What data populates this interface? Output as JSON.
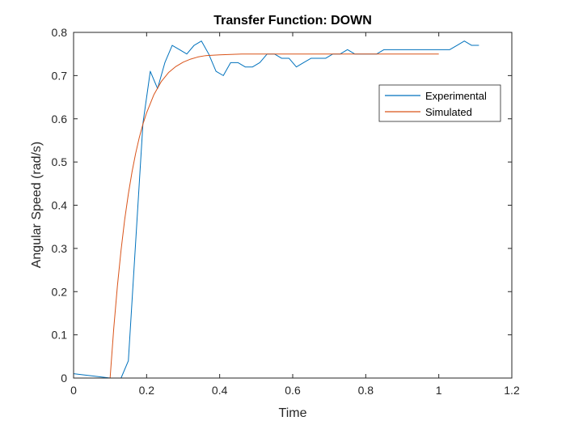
{
  "chart_data": {
    "type": "line",
    "title": "Transfer Function: DOWN",
    "xlabel": "Time",
    "ylabel": "Angular Speed (rad/s)",
    "xlim": [
      0,
      1.2
    ],
    "ylim": [
      0,
      0.8
    ],
    "xticks": [
      0,
      0.2,
      0.4,
      0.6,
      0.8,
      1,
      1.2
    ],
    "xtick_labels": [
      "0",
      "0.2",
      "0.4",
      "0.6",
      "0.8",
      "1",
      "1.2"
    ],
    "yticks": [
      0,
      0.1,
      0.2,
      0.3,
      0.4,
      0.5,
      0.6,
      0.7,
      0.8
    ],
    "ytick_labels": [
      "0",
      "0.1",
      "0.2",
      "0.3",
      "0.4",
      "0.5",
      "0.6",
      "0.7",
      "0.8"
    ],
    "grid": false,
    "legend_position": "upper-right",
    "series": [
      {
        "name": "Experimental",
        "color": "#0072BD",
        "x": [
          0.0,
          0.1,
          0.11,
          0.13,
          0.15,
          0.19,
          0.21,
          0.23,
          0.25,
          0.27,
          0.29,
          0.31,
          0.33,
          0.35,
          0.37,
          0.39,
          0.41,
          0.43,
          0.45,
          0.47,
          0.49,
          0.51,
          0.53,
          0.55,
          0.57,
          0.59,
          0.61,
          0.63,
          0.65,
          0.67,
          0.69,
          0.71,
          0.73,
          0.75,
          0.77,
          0.79,
          0.81,
          0.83,
          0.85,
          0.87,
          0.89,
          0.91,
          0.93,
          0.95,
          0.97,
          0.99,
          1.01,
          1.03,
          1.05,
          1.07,
          1.09,
          1.11
        ],
        "y": [
          0.01,
          0.0,
          0.0,
          0.0,
          0.04,
          0.59,
          0.71,
          0.67,
          0.73,
          0.77,
          0.76,
          0.75,
          0.77,
          0.78,
          0.75,
          0.71,
          0.7,
          0.73,
          0.73,
          0.72,
          0.72,
          0.73,
          0.75,
          0.75,
          0.74,
          0.74,
          0.72,
          0.73,
          0.74,
          0.74,
          0.74,
          0.75,
          0.75,
          0.76,
          0.75,
          0.75,
          0.75,
          0.75,
          0.76,
          0.76,
          0.76,
          0.76,
          0.76,
          0.76,
          0.76,
          0.76,
          0.76,
          0.76,
          0.77,
          0.78,
          0.77,
          0.77
        ]
      },
      {
        "name": "Simulated",
        "color": "#D95319",
        "x": [
          0.1,
          0.11,
          0.12,
          0.13,
          0.14,
          0.15,
          0.16,
          0.17,
          0.18,
          0.19,
          0.2,
          0.22,
          0.24,
          0.26,
          0.28,
          0.3,
          0.32,
          0.34,
          0.36,
          0.38,
          0.4,
          0.43,
          0.46,
          0.5,
          0.55,
          0.6,
          0.7,
          0.8,
          0.9,
          1.0
        ],
        "y": [
          0.0,
          0.115,
          0.213,
          0.296,
          0.367,
          0.426,
          0.477,
          0.52,
          0.557,
          0.588,
          0.614,
          0.656,
          0.686,
          0.707,
          0.721,
          0.731,
          0.738,
          0.743,
          0.746,
          0.747,
          0.748,
          0.749,
          0.75,
          0.75,
          0.75,
          0.75,
          0.75,
          0.75,
          0.75,
          0.75
        ]
      }
    ]
  }
}
